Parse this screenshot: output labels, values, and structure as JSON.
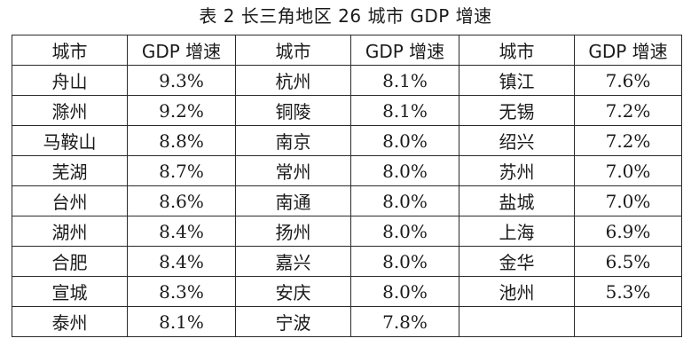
{
  "caption": "表 2 长三角地区 26 城市 GDP 增速",
  "header": {
    "city": "城市",
    "rate": "GDP 增速"
  },
  "columns": [
    {
      "rows": [
        {
          "city": "舟山",
          "rate": "9.3%"
        },
        {
          "city": "滁州",
          "rate": "9.2%"
        },
        {
          "city": "马鞍山",
          "rate": "8.8%"
        },
        {
          "city": "芜湖",
          "rate": "8.7%"
        },
        {
          "city": "台州",
          "rate": "8.6%"
        },
        {
          "city": "湖州",
          "rate": "8.4%"
        },
        {
          "city": "合肥",
          "rate": "8.4%"
        },
        {
          "city": "宣城",
          "rate": "8.3%"
        },
        {
          "city": "泰州",
          "rate": "8.1%"
        }
      ]
    },
    {
      "rows": [
        {
          "city": "杭州",
          "rate": "8.1%"
        },
        {
          "city": "铜陵",
          "rate": "8.1%"
        },
        {
          "city": "南京",
          "rate": "8.0%"
        },
        {
          "city": "常州",
          "rate": "8.0%"
        },
        {
          "city": "南通",
          "rate": "8.0%"
        },
        {
          "city": "扬州",
          "rate": "8.0%"
        },
        {
          "city": "嘉兴",
          "rate": "8.0%"
        },
        {
          "city": "安庆",
          "rate": "8.0%"
        },
        {
          "city": "宁波",
          "rate": "7.8%"
        }
      ]
    },
    {
      "rows": [
        {
          "city": "镇江",
          "rate": "7.6%"
        },
        {
          "city": "无锡",
          "rate": "7.2%"
        },
        {
          "city": "绍兴",
          "rate": "7.2%"
        },
        {
          "city": "苏州",
          "rate": "7.0%"
        },
        {
          "city": "盐城",
          "rate": "7.0%"
        },
        {
          "city": "上海",
          "rate": "6.9%"
        },
        {
          "city": "金华",
          "rate": "6.5%"
        },
        {
          "city": "池州",
          "rate": "5.3%"
        },
        {
          "city": "",
          "rate": ""
        }
      ]
    }
  ]
}
